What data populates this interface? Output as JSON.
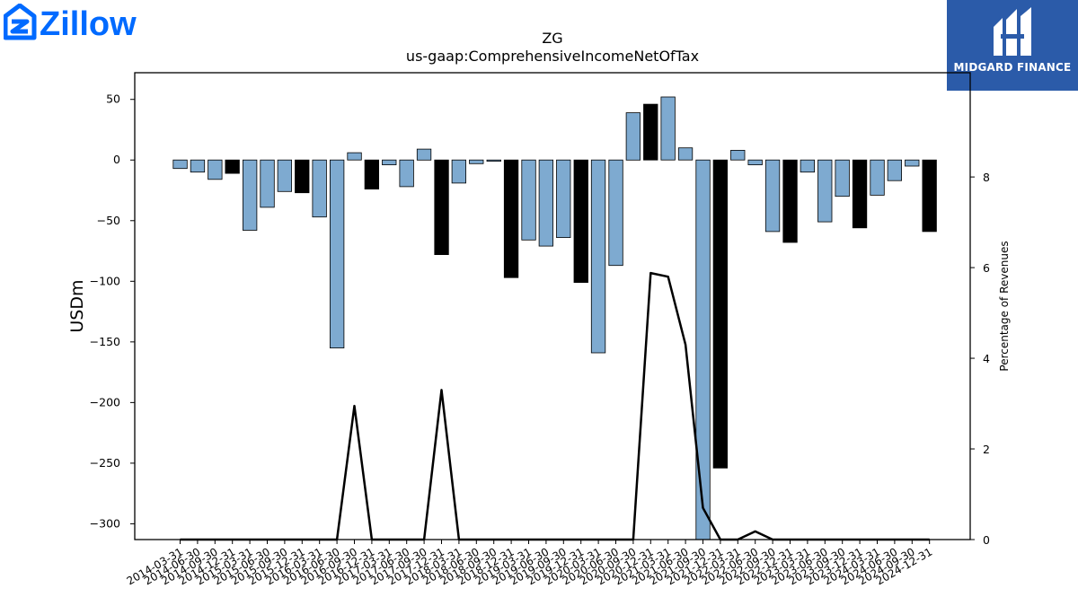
{
  "brand": {
    "left_logo_text": "Zillow",
    "right_logo_text": "MIDGARD FINANCE",
    "left_color": "#006aff",
    "right_bg": "#2b5ba9"
  },
  "chart_data": {
    "type": "bar",
    "title": "ZG",
    "subtitle": "us-gaap:ComprehensiveIncomeNetOfTax",
    "ylabel": "USDm",
    "y2label": "Percentage of Revenues",
    "ylim": [
      -313,
      72
    ],
    "y2lim": [
      0,
      10.3
    ],
    "yticks": [
      50,
      0,
      -50,
      -100,
      -150,
      -200,
      -250,
      -300
    ],
    "y2ticks": [
      0,
      2,
      4,
      6,
      8
    ],
    "grid": false,
    "colors": {
      "quarter": "#7eaad0",
      "year_end": "#000000",
      "line": "#000000"
    },
    "categories": [
      "2014-03-31",
      "2014-06-30",
      "2014-09-30",
      "2014-12-31",
      "2015-03-31",
      "2015-06-30",
      "2015-09-30",
      "2015-12-31",
      "2016-03-31",
      "2016-06-30",
      "2016-09-30",
      "2016-12-31",
      "2017-03-31",
      "2017-06-30",
      "2017-09-30",
      "2017-12-31",
      "2018-03-31",
      "2018-06-30",
      "2018-09-30",
      "2018-12-31",
      "2019-03-31",
      "2019-06-30",
      "2019-09-30",
      "2019-12-31",
      "2020-03-31",
      "2020-06-30",
      "2020-09-30",
      "2020-12-31",
      "2021-03-31",
      "2021-06-30",
      "2021-09-30",
      "2021-12-31",
      "2022-03-31",
      "2022-06-30",
      "2022-09-30",
      "2022-12-31",
      "2023-03-31",
      "2023-06-30",
      "2023-09-30",
      "2023-12-31",
      "2024-03-31",
      "2024-06-30",
      "2024-09-30",
      "2024-12-31"
    ],
    "series": [
      {
        "values": [
          -7,
          -10,
          -16,
          -11,
          -58,
          -39,
          -26,
          -27,
          -47,
          -155,
          6,
          -24,
          -4,
          -22,
          9,
          -78,
          -19,
          -3,
          -1,
          -97,
          -66,
          -71,
          -64,
          -101,
          -159,
          -87,
          39,
          46,
          52,
          10,
          -314,
          -254,
          8,
          -4,
          -59,
          -68,
          -10,
          -51,
          -30,
          -56,
          -29,
          -17,
          -5,
          -59
        ]
      },
      {
        "values": [
          0,
          0,
          0,
          0,
          0,
          0,
          0,
          0,
          0,
          0,
          2.95,
          0,
          0,
          0,
          0,
          3.3,
          0,
          0,
          0,
          0,
          0,
          0,
          0,
          0,
          0,
          0,
          0,
          5.88,
          5.8,
          4.3,
          0.7,
          0,
          0,
          0.18,
          0,
          0,
          0,
          0,
          0,
          0,
          0,
          0,
          0,
          0
        ]
      }
    ]
  }
}
